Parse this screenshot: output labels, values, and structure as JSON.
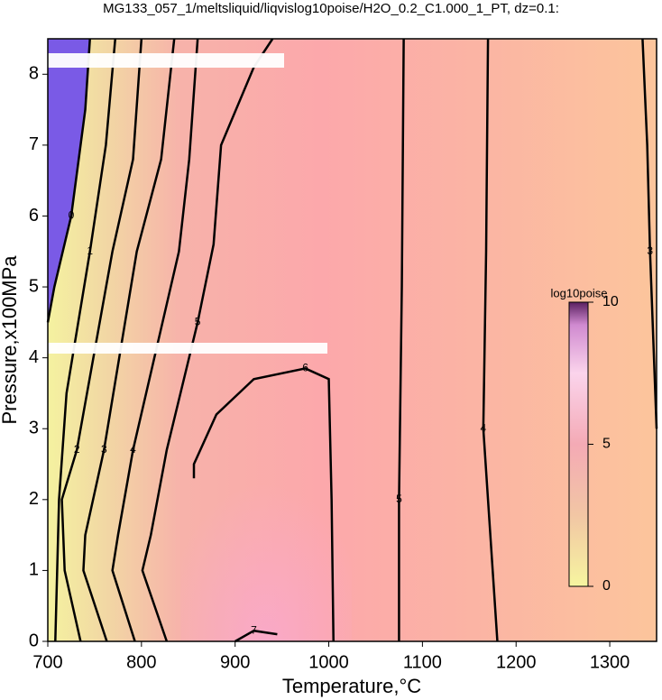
{
  "chart_data": {
    "type": "contour",
    "title": "MG133_057_1/meltsliquid/liqvislog10poise/H2O_0.2_C1.000_1_PT, dz=0.1:",
    "x_label": "Temperature,°C",
    "y_label": "Pressure,x100MPa",
    "xlim": [
      700,
      1350
    ],
    "xticks": [
      700,
      800,
      900,
      1000,
      1100,
      1200,
      1300
    ],
    "ylim": [
      0,
      8.5
    ],
    "yticks": [
      0,
      1,
      2,
      3,
      4,
      5,
      6,
      7,
      8
    ],
    "contours": [
      {
        "level": 0,
        "x": [
          700,
          707,
          725,
          740,
          745
        ],
        "y": [
          4.5,
          5,
          6,
          7.5,
          8.5
        ]
      },
      {
        "level": 1,
        "x": [
          708,
          712,
          720,
          745,
          762,
          772
        ],
        "y": [
          0,
          2,
          3.5,
          5.5,
          7,
          8.5
        ]
      },
      {
        "level": 2,
        "x": [
          735,
          718,
          715,
          731,
          769,
          791,
          800
        ],
        "y": [
          0,
          1,
          2,
          2.7,
          5.5,
          6.8,
          8.5
        ]
      },
      {
        "level": 3,
        "x": [
          763,
          738,
          740,
          760,
          795,
          821,
          835
        ],
        "y": [
          0,
          1,
          1.5,
          2.7,
          5.5,
          6.8,
          8.5
        ]
      },
      {
        "level": 4,
        "x": [
          793,
          769,
          775,
          791,
          840,
          851,
          860
        ],
        "y": [
          0,
          1,
          1.5,
          2.7,
          5.5,
          6.8,
          8.5
        ]
      },
      {
        "level": 5,
        "x": [
          827,
          801,
          810,
          827,
          860,
          877,
          885,
          920,
          940
        ],
        "y": [
          0,
          1,
          1.5,
          2.7,
          4.5,
          5.6,
          7,
          8.1,
          8.5
        ]
      },
      {
        "level": 6,
        "x": [
          856,
          856,
          880,
          920,
          975,
          1000,
          1003,
          1005
        ],
        "y": [
          2.3,
          2.5,
          3.2,
          3.7,
          3.85,
          3.7,
          2,
          0
        ]
      },
      {
        "level": 7,
        "x": [
          900,
          920,
          945
        ],
        "y": [
          0,
          0.15,
          0.1
        ]
      },
      {
        "level": 5,
        "x": [
          1080,
          1078,
          1075,
          1075
        ],
        "y": [
          8.5,
          5,
          2,
          0
        ]
      },
      {
        "level": 4,
        "x": [
          1170,
          1168,
          1165,
          1175,
          1180
        ],
        "y": [
          8.5,
          5.5,
          3,
          1,
          0
        ]
      },
      {
        "level": 3,
        "x": [
          1335,
          1340,
          1343,
          1350
        ],
        "y": [
          8.5,
          7,
          5.5,
          3
        ]
      }
    ],
    "colorbar": {
      "label": "log10poise",
      "lim": [
        0,
        10
      ],
      "ticks": [
        0,
        5,
        10
      ]
    }
  }
}
